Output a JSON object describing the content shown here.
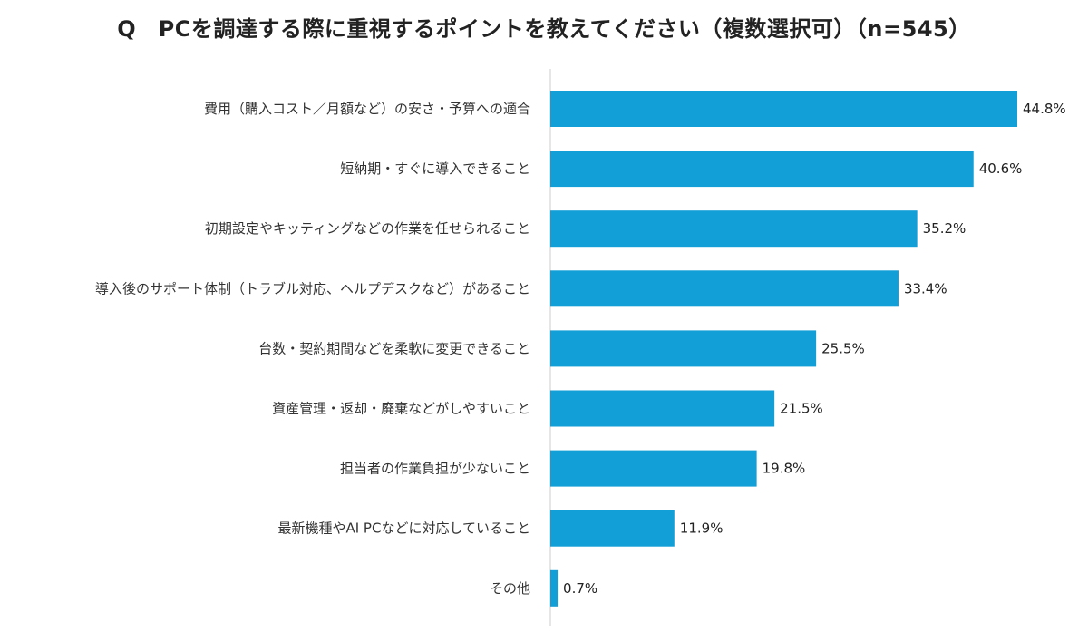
{
  "chart_data": {
    "type": "bar",
    "orientation": "horizontal",
    "title": "Q　PCを調達する際に重視するポイントを教えてください（複数選択可）（n=545）",
    "categories": [
      "費用（購入コスト／月額など）の安さ・予算への適合",
      "短納期・すぐに導入できること",
      "初期設定やキッティングなどの作業を任せられること",
      "導入後のサポート体制（トラブル対応、ヘルプデスクなど）があること",
      "台数・契約期間などを柔軟に変更できること",
      "資産管理・返却・廃棄などがしやすいこと",
      "担当者の作業負担が少ないこと",
      "最新機種やAI PCなどに対応していること",
      "その他"
    ],
    "values": [
      44.8,
      40.6,
      35.2,
      33.4,
      25.5,
      21.5,
      19.8,
      11.9,
      0.7
    ],
    "value_labels": [
      "44.8%",
      "40.6%",
      "35.2%",
      "33.4%",
      "25.5%",
      "21.5%",
      "19.8%",
      "11.9%",
      "0.7%"
    ],
    "xlim": [
      0,
      50
    ],
    "grid": false,
    "legend": "none",
    "bar_color": "#129ed6",
    "axis_color": "#cccccc"
  }
}
